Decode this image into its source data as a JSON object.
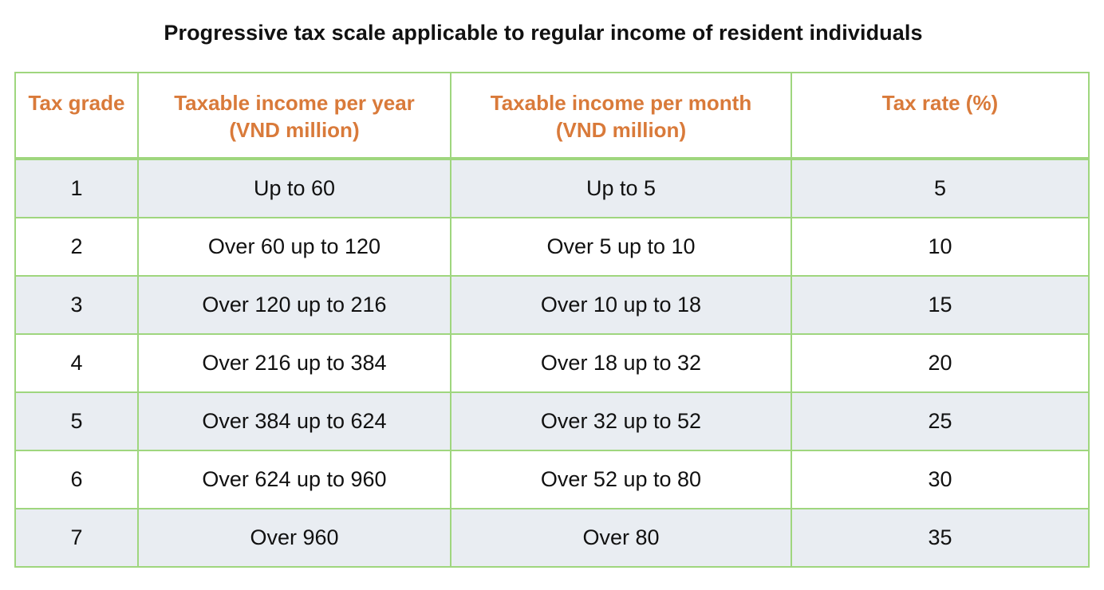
{
  "title": "Progressive tax scale applicable to regular income of resident individuals",
  "colors": {
    "header_text": "#d97a3a",
    "border": "#9fd67e",
    "row_shade": "#e9edf2"
  },
  "table": {
    "headers": {
      "grade": "Tax grade",
      "year": "Taxable income per year (VND million)",
      "month": "Taxable income per month (VND million)",
      "rate": "Tax rate (%)"
    },
    "rows": [
      {
        "grade": "1",
        "year": "Up to 60",
        "month": "Up to 5",
        "rate": "5"
      },
      {
        "grade": "2",
        "year": "Over 60 up to 120",
        "month": "Over 5 up to 10",
        "rate": "10"
      },
      {
        "grade": "3",
        "year": "Over 120 up to 216",
        "month": "Over 10 up to 18",
        "rate": "15"
      },
      {
        "grade": "4",
        "year": "Over 216 up to 384",
        "month": "Over 18 up to 32",
        "rate": "20"
      },
      {
        "grade": "5",
        "year": "Over 384 up to 624",
        "month": "Over 32 up to 52",
        "rate": "25"
      },
      {
        "grade": "6",
        "year": "Over 624 up to 960",
        "month": "Over 52 up to 80",
        "rate": "30"
      },
      {
        "grade": "7",
        "year": "Over 960",
        "month": "Over 80",
        "rate": "35"
      }
    ]
  }
}
